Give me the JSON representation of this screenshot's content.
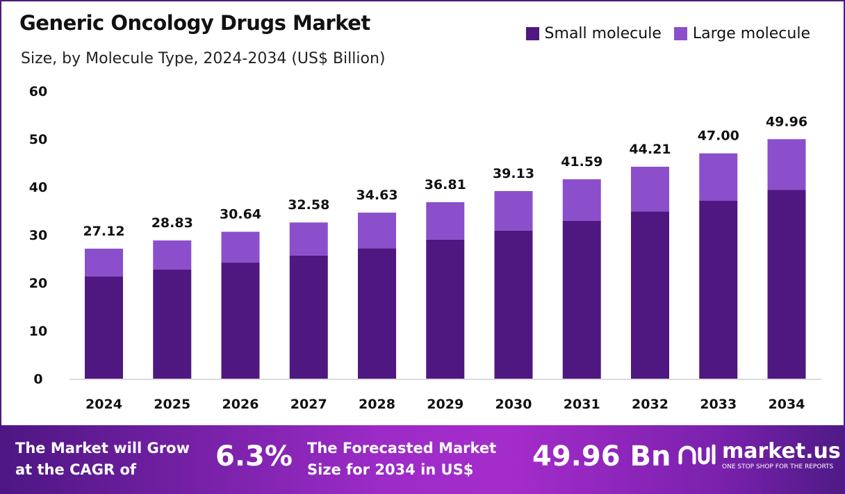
{
  "title": "Generic Oncology Drugs Market",
  "subtitle": "Size, by Molecule Type, 2024-2034 (US$ Billion)",
  "colors": {
    "small": "#4f1880",
    "large": "#8b4fcc",
    "frame": "#4a1a7a"
  },
  "chart_data": {
    "type": "bar",
    "stacked": true,
    "categories": [
      "2024",
      "2025",
      "2026",
      "2027",
      "2028",
      "2029",
      "2030",
      "2031",
      "2032",
      "2033",
      "2034"
    ],
    "series": [
      {
        "name": "Small molecule",
        "values": [
          21.3,
          22.8,
          24.2,
          25.7,
          27.2,
          29.0,
          30.9,
          32.9,
          34.9,
          37.1,
          39.4
        ]
      },
      {
        "name": "Large molecule",
        "values": [
          5.82,
          6.03,
          6.44,
          6.88,
          7.43,
          7.81,
          8.23,
          8.69,
          9.31,
          9.9,
          10.56
        ]
      }
    ],
    "totals_labels": [
      "27.12",
      "28.83",
      "30.64",
      "32.58",
      "34.63",
      "36.81",
      "39.13",
      "41.59",
      "44.21",
      "47.00",
      "49.96"
    ],
    "totals": [
      27.12,
      28.83,
      30.64,
      32.58,
      34.63,
      36.81,
      39.13,
      41.59,
      44.21,
      47.0,
      49.96
    ],
    "ylim": [
      0,
      60
    ],
    "yticks": [
      "0",
      "10",
      "20",
      "30",
      "40",
      "50",
      "60"
    ],
    "grid": false,
    "legend_position": "top-right"
  },
  "footer": {
    "cagr_text_1": "The Market will Grow",
    "cagr_text_2": "at the CAGR of",
    "cagr_value": "6.3%",
    "forecast_text_1": "The Forecasted Market",
    "forecast_text_2": "Size for 2034 in US$",
    "forecast_value": "49.96 Bn",
    "logo_name": "market.us",
    "logo_tagline": "ONE STOP SHOP FOR THE REPORTS"
  }
}
